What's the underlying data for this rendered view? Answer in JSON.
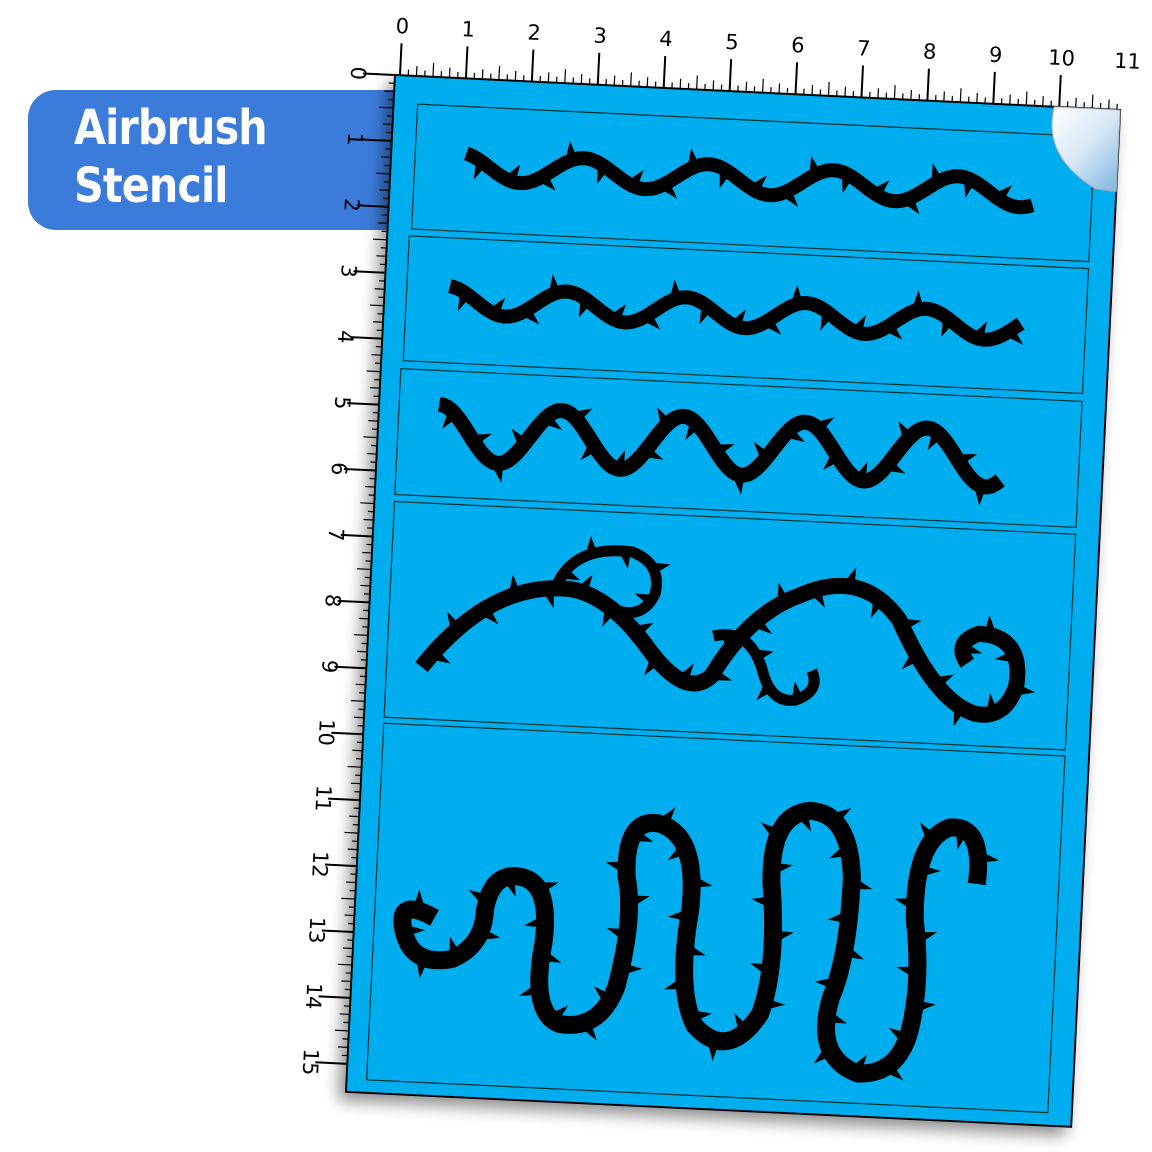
{
  "label": {
    "line1": "Airbrush",
    "line2": "Stencil"
  },
  "ruler": {
    "top_numbers": [
      "0",
      "1",
      "2",
      "3",
      "4",
      "5",
      "6",
      "7",
      "8",
      "9",
      "10",
      "11"
    ],
    "left_numbers": [
      "0",
      "1",
      "2",
      "3",
      "4",
      "5",
      "6",
      "7",
      "8",
      "9",
      "10",
      "11",
      "12",
      "13",
      "14",
      "15"
    ]
  },
  "colors": {
    "label": "#3b7bd9",
    "sheet": "#00aeef",
    "vine": "#000000"
  },
  "panels": [
    "thorn-vine-wave",
    "thorn-vine-wave",
    "thorn-vine-wave-large",
    "thorn-vine-curl",
    "thorn-vine-serpentine"
  ]
}
